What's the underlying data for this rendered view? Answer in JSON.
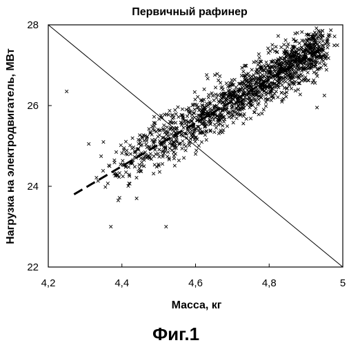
{
  "chart_data": {
    "type": "scatter",
    "title": "Первичный рафинер",
    "xlabel": "Масса, кг",
    "ylabel": "Нагрузка на электродвигатель, МВт",
    "xlim": [
      4.2,
      5.0
    ],
    "ylim": [
      22,
      28
    ],
    "xticks": [
      4.2,
      4.4,
      4.6,
      4.8,
      5.0
    ],
    "xtick_labels": [
      "4,2",
      "4,4",
      "4,6",
      "4,8",
      "5"
    ],
    "yticks": [
      22,
      24,
      26,
      28
    ],
    "ytick_labels": [
      "22",
      "24",
      "26",
      "28"
    ],
    "grid": false,
    "legend": "none",
    "marker": "x",
    "series": [
      {
        "kind": "scatter",
        "cloud": {
          "description_points_count": 1500,
          "center_trend": {
            "slope": 5.3,
            "intercept": 1.25
          },
          "x_range": [
            4.33,
            4.95
          ],
          "y_spread": 0.45
        },
        "values": [
          [
            4.25,
            26.35
          ],
          [
            4.37,
            23.0
          ],
          [
            4.52,
            23.0
          ],
          [
            4.39,
            23.65
          ],
          [
            4.44,
            23.7
          ],
          [
            4.31,
            25.05
          ],
          [
            4.93,
            25.95
          ],
          [
            4.95,
            26.25
          ]
        ]
      },
      {
        "kind": "trend-line",
        "style": "dashed",
        "values": [
          [
            4.27,
            23.8
          ],
          [
            4.95,
            27.45
          ]
        ]
      },
      {
        "kind": "reference-line",
        "style": "solid",
        "values": [
          [
            4.2,
            28.0
          ],
          [
            5.0,
            22.0
          ]
        ]
      }
    ]
  },
  "figure_caption": "Фиг.1",
  "colors": {
    "ink": "#000000",
    "background": "#ffffff"
  }
}
